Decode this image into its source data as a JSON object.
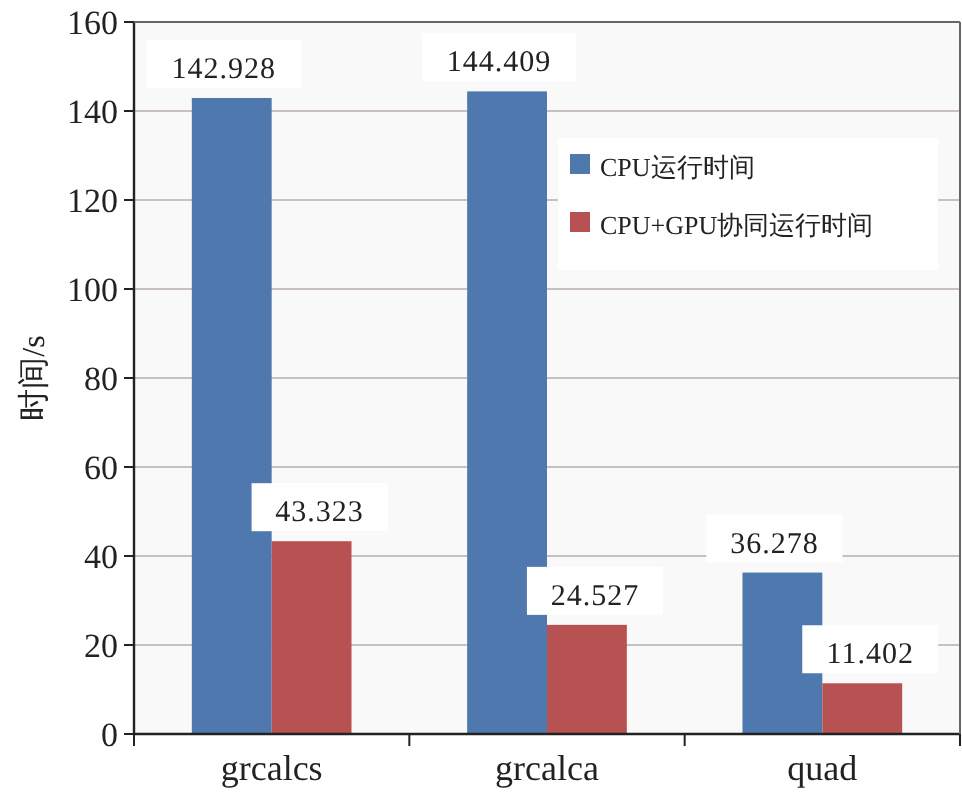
{
  "chart_data": {
    "type": "bar",
    "ylabel": "时间/s",
    "categories": [
      "grcalcs",
      "grcalca",
      "quad"
    ],
    "series": [
      {
        "name": "CPU运行时间",
        "color": "#4f78af",
        "values": [
          142.928,
          144.409,
          36.278
        ]
      },
      {
        "name": "CPU+GPU协同运行时间",
        "color": "#b85252",
        "values": [
          43.323,
          24.527,
          11.402
        ]
      }
    ],
    "ylim": [
      0,
      160
    ],
    "yticks": [
      0,
      20,
      40,
      60,
      80,
      100,
      120,
      140,
      160
    ],
    "grid": "y",
    "legend": "top right",
    "data_labels": true
  }
}
